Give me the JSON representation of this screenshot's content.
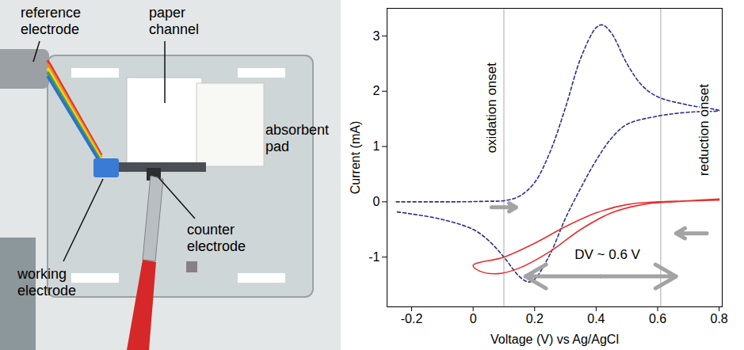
{
  "photo": {
    "labels": [
      "reference electrode",
      "paper channel",
      "absorbent pad",
      "working electrode",
      "counter electrode"
    ]
  },
  "chart_data": {
    "type": "line",
    "x_label": "Voltage (V) vs Ag/AgCl",
    "y_label": "Current (mA)",
    "xlim": [
      -0.28,
      0.81
    ],
    "xticks": [
      -0.2,
      0,
      0.2,
      0.4,
      0.6,
      0.8
    ],
    "ylim": [
      -1.9,
      3.5
    ],
    "yticks": [
      -1,
      0,
      1,
      2,
      3
    ],
    "grid": false,
    "series": [
      {
        "color": "#2e2e8f",
        "line_style": "dashed",
        "x": [
          -0.25,
          -0.15,
          -0.05,
          0.05,
          0.1,
          0.15,
          0.2,
          0.25,
          0.3,
          0.35,
          0.4,
          0.42,
          0.45,
          0.5,
          0.55,
          0.6,
          0.7,
          0.8,
          0.7,
          0.6,
          0.5,
          0.45,
          0.4,
          0.35,
          0.3,
          0.25,
          0.2,
          0.18,
          0.15,
          0.1,
          0.05,
          0.0,
          -0.1,
          -0.2,
          -0.25
        ],
        "values": [
          0.0,
          0.0,
          0.0,
          0.01,
          0.02,
          0.1,
          0.35,
          0.9,
          1.7,
          2.6,
          3.15,
          3.2,
          3.05,
          2.5,
          2.1,
          1.9,
          1.75,
          1.65,
          1.62,
          1.55,
          1.4,
          1.15,
          0.75,
          0.25,
          -0.3,
          -0.95,
          -1.4,
          -1.45,
          -1.35,
          -1.0,
          -0.7,
          -0.5,
          -0.32,
          -0.22,
          -0.18
        ]
      },
      {
        "color": "#e53030",
        "line_style": "solid",
        "x": [
          0.8,
          0.7,
          0.6,
          0.5,
          0.4,
          0.3,
          0.2,
          0.1,
          0.0,
          0.02,
          0.08,
          0.15,
          0.25,
          0.35,
          0.45,
          0.55,
          0.65,
          0.8
        ],
        "values": [
          0.05,
          0.02,
          0.0,
          -0.05,
          -0.2,
          -0.45,
          -0.75,
          -1.0,
          -1.15,
          -1.25,
          -1.3,
          -1.2,
          -0.9,
          -0.5,
          -0.2,
          -0.05,
          0.0,
          0.03
        ]
      }
    ],
    "reference_lines": [
      {
        "x": 0.1,
        "label": "oxidation onset",
        "label_x": 0.06,
        "label_y": 1.7,
        "arrow": {
          "x1": 0.06,
          "x2": 0.14,
          "y": -0.1
        }
      },
      {
        "x": 0.61,
        "label": "reduction onset",
        "label_x": 0.75,
        "label_y": 1.3,
        "arrow": {
          "x1": 0.76,
          "x2": 0.66,
          "y": -0.57
        }
      }
    ],
    "annotations": [
      {
        "text": "DV ~ 0.6 V",
        "x": 0.33,
        "y": -0.95,
        "arrow": {
          "x1": 0.17,
          "x2": 0.66,
          "y": -1.35
        }
      }
    ]
  }
}
